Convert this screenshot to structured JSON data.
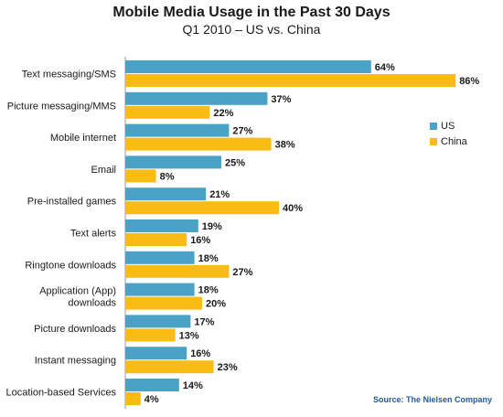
{
  "title": "Mobile Media Usage in the Past 30 Days",
  "subtitle": "Q1 2010 – US vs. China",
  "source": "Source: The Nielsen Company",
  "colors": {
    "us": "#4aa3c7",
    "china": "#f9bc15",
    "axis": "#999999"
  },
  "chart_data": {
    "type": "bar",
    "orientation": "horizontal",
    "title": "Mobile Media Usage in the Past 30 Days",
    "subtitle": "Q1 2010 – US vs. China",
    "categories": [
      "Text messaging/SMS",
      "Picture messaging/MMS",
      "Mobile internet",
      "Email",
      "Pre-installed games",
      "Text alerts",
      "Ringtone downloads",
      "Application (App) downloads",
      "Picture downloads",
      "Instant messaging",
      "Location-based Services"
    ],
    "category_lines": [
      [
        "Text messaging/SMS"
      ],
      [
        "Picture messaging/MMS"
      ],
      [
        "Mobile internet"
      ],
      [
        "Email"
      ],
      [
        "Pre-installed games"
      ],
      [
        "Text alerts"
      ],
      [
        "Ringtone downloads"
      ],
      [
        "Application (App)",
        "downloads"
      ],
      [
        "Picture downloads"
      ],
      [
        "Instant messaging"
      ],
      [
        "Location-based Services"
      ]
    ],
    "series": [
      {
        "name": "US",
        "values": [
          64,
          37,
          27,
          25,
          21,
          19,
          18,
          18,
          17,
          16,
          14
        ]
      },
      {
        "name": "China",
        "values": [
          86,
          22,
          38,
          8,
          40,
          16,
          27,
          20,
          13,
          23,
          4
        ]
      }
    ],
    "value_suffix": "%",
    "xlim": [
      0,
      100
    ],
    "grid": false,
    "legend_position": "right"
  }
}
